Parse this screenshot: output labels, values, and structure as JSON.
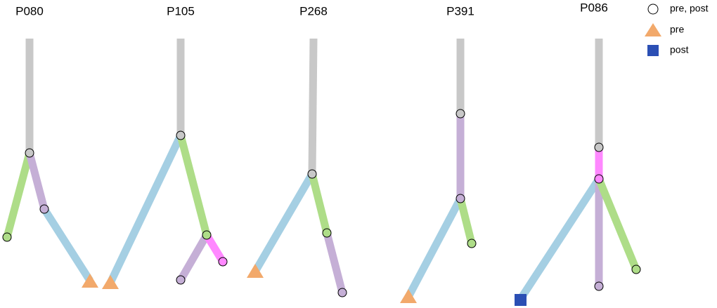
{
  "trees": [
    {
      "label": "P080"
    },
    {
      "label": "P105"
    },
    {
      "label": "P268"
    },
    {
      "label": "P391"
    },
    {
      "label": "P086"
    }
  ],
  "legend": [
    {
      "label": "pre, post"
    },
    {
      "label": "pre"
    },
    {
      "label": "post"
    }
  ]
}
